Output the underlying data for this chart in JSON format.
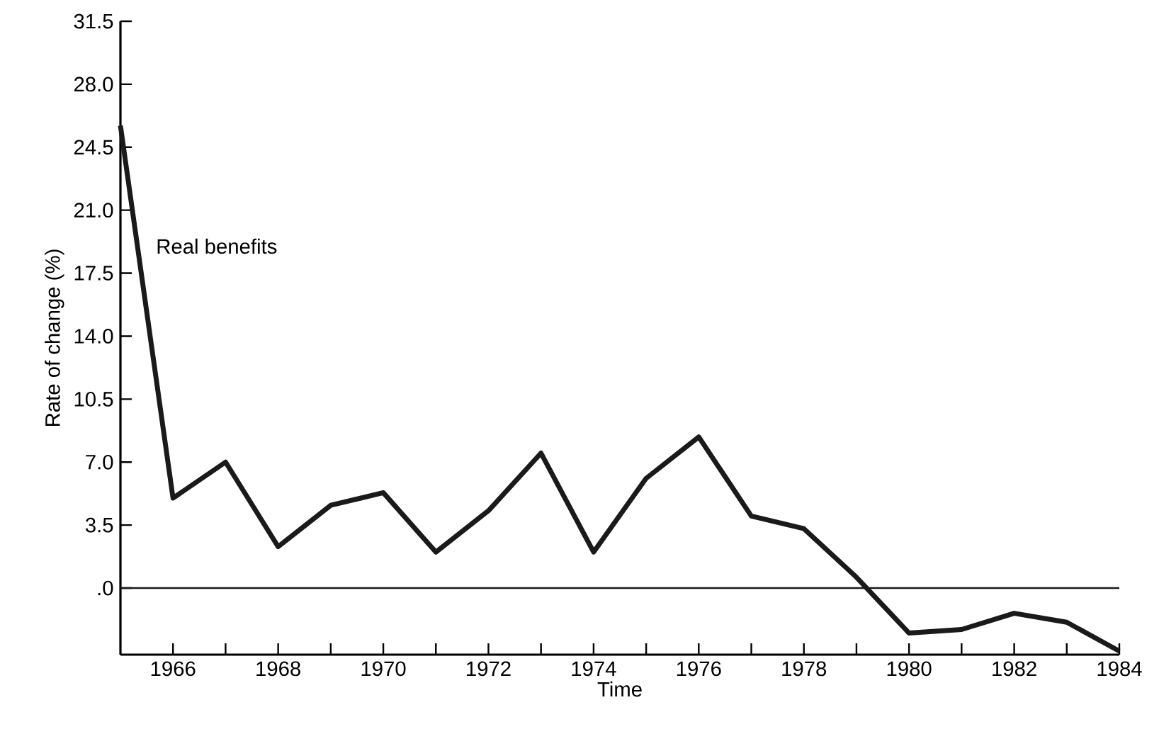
{
  "chart_data": {
    "type": "line",
    "xlabel": "Time",
    "ylabel": "Rate of change (%)",
    "x": [
      1965,
      1966,
      1967,
      1968,
      1969,
      1970,
      1971,
      1972,
      1973,
      1974,
      1975,
      1976,
      1977,
      1978,
      1979,
      1980,
      1981,
      1982,
      1983,
      1984
    ],
    "series": [
      {
        "name": "Real benefits",
        "color": "#1a1a1a",
        "values": [
          25.7,
          5.0,
          7.0,
          2.3,
          4.6,
          5.3,
          2.0,
          4.3,
          7.5,
          2.0,
          6.1,
          8.4,
          4.0,
          3.3,
          0.6,
          -2.5,
          -2.3,
          -1.4,
          -1.9,
          -3.5
        ]
      }
    ],
    "xlim": [
      1965,
      1984
    ],
    "ylim": [
      -3.7,
      31.5
    ],
    "xticks": [
      1966,
      {
        "value": 1967,
        "label": null
      },
      1968,
      {
        "value": 1969,
        "label": null
      },
      1970,
      {
        "value": 1971,
        "label": null
      },
      1972,
      {
        "value": 1973,
        "label": null
      },
      1974,
      {
        "value": 1975,
        "label": null
      },
      1976,
      {
        "value": 1977,
        "label": null
      },
      1978,
      {
        "value": 1979,
        "label": null
      },
      1980,
      {
        "value": 1981,
        "label": null
      },
      1982,
      {
        "value": 1983,
        "label": null
      },
      1984
    ],
    "yticks": [
      {
        "value": 0,
        "label": ".0"
      },
      3.5,
      {
        "value": 7,
        "label": "7.0"
      },
      10.5,
      {
        "value": 14,
        "label": "14.0"
      },
      17.5,
      {
        "value": 21,
        "label": "21.0"
      },
      24.5,
      {
        "value": 28,
        "label": "28.0"
      },
      31.5
    ],
    "ref_lines": [
      {
        "axis": "y",
        "value": 0,
        "color": "#1a1a1a",
        "line_style": "solid"
      }
    ],
    "grid": false,
    "legend": false,
    "marker": "none",
    "line_style": "solid"
  }
}
